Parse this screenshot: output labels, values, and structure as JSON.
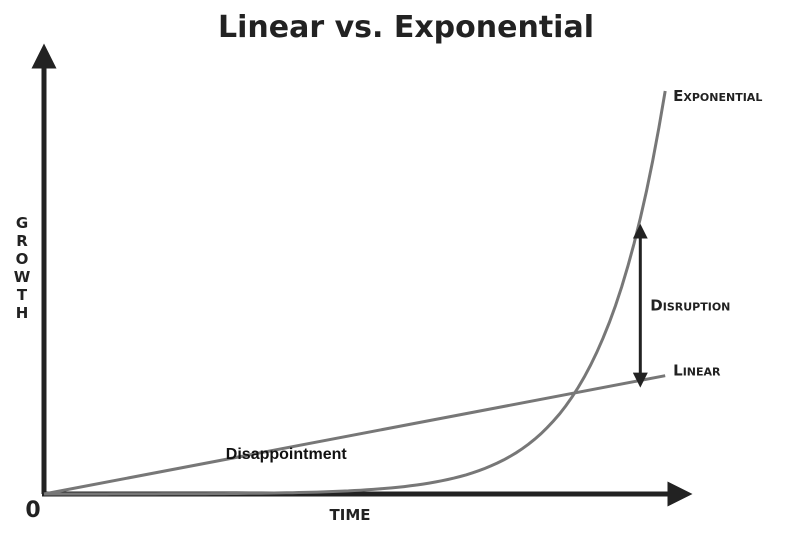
{
  "chart_data": {
    "type": "line",
    "title": "Linear vs. Exponential",
    "xlabel": "TIME",
    "ylabel": "GROWTH",
    "origin_label": "0",
    "grid": false,
    "axis_ticks": false,
    "series": [
      {
        "name": "Linear",
        "color": "#777777",
        "curve": "linear",
        "x": [
          0,
          1
        ],
        "y": [
          0,
          0.27
        ]
      },
      {
        "name": "Exponential",
        "color": "#777777",
        "curve": "exponential",
        "x": [
          0,
          0.1,
          0.2,
          0.3,
          0.4,
          0.5,
          0.6,
          0.7,
          0.8,
          0.9,
          0.95,
          1
        ],
        "y": [
          0,
          0.002,
          0.005,
          0.01,
          0.018,
          0.035,
          0.07,
          0.14,
          0.27,
          0.5,
          0.68,
          0.92
        ]
      }
    ],
    "annotations": [
      {
        "text": "Disappointment",
        "x": 0.39,
        "y": 0.08
      },
      {
        "text": "Disruption",
        "type": "double-arrow",
        "x": 0.96,
        "y_from": 0.26,
        "y_to": 0.6
      }
    ],
    "xlim": [
      0,
      1.04
    ],
    "ylim": [
      0,
      1
    ]
  }
}
